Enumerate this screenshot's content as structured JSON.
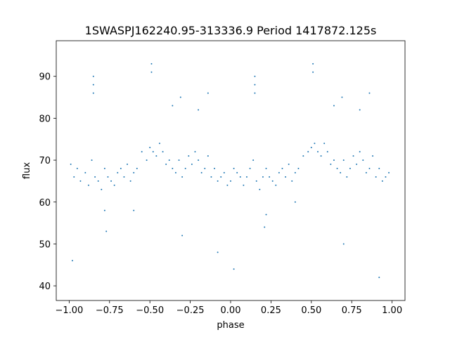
{
  "chart_data": {
    "type": "scatter",
    "title": "1SWASPJ162240.95-313336.9 Period 1417872.125s",
    "xlabel": "phase",
    "ylabel": "flux",
    "xlim": [
      -1.08,
      1.08
    ],
    "ylim": [
      36.5,
      98.5
    ],
    "x_ticks": [
      -1.0,
      -0.75,
      -0.5,
      -0.25,
      0.0,
      0.25,
      0.5,
      0.75,
      1.0
    ],
    "x_tick_labels": [
      "−1.00",
      "−0.75",
      "−0.50",
      "−0.25",
      "0.00",
      "0.25",
      "0.50",
      "0.75",
      "1.00"
    ],
    "y_ticks": [
      40,
      50,
      60,
      70,
      80,
      90
    ],
    "y_tick_labels": [
      "40",
      "50",
      "60",
      "70",
      "80",
      "90"
    ],
    "grid": false,
    "marker_color": "#1f77b4",
    "series": [
      {
        "x": [
          -0.99,
          -0.97,
          -0.95,
          -0.93,
          -0.9,
          -0.88,
          -0.86,
          -0.84,
          -0.82,
          -0.8,
          -0.78,
          -0.76,
          -0.74,
          -0.72,
          -0.7,
          -0.68,
          -0.66,
          -0.64,
          -0.62,
          -0.6,
          -0.58,
          -0.55,
          -0.52,
          -0.5,
          -0.48,
          -0.46,
          -0.44,
          -0.42,
          -0.4,
          -0.38,
          -0.36,
          -0.34,
          -0.32,
          -0.3,
          -0.28,
          -0.26,
          -0.24,
          -0.22,
          -0.2,
          -0.18,
          -0.16,
          -0.14,
          -0.12,
          -0.1,
          -0.08,
          -0.06,
          -0.04,
          -0.02,
          0.0,
          0.02,
          0.04,
          0.06,
          0.08,
          0.1,
          0.12,
          0.14,
          0.16,
          0.18,
          0.2,
          0.22,
          0.24,
          0.26,
          0.28,
          0.3,
          0.32,
          0.34,
          0.36,
          0.38,
          0.4,
          0.42,
          0.45,
          0.48,
          0.5,
          0.52,
          0.54,
          0.56,
          0.58,
          0.6,
          0.62,
          0.64,
          0.66,
          0.68,
          0.7,
          0.72,
          0.74,
          0.76,
          0.78,
          0.8,
          0.82,
          0.84,
          0.86,
          0.88,
          0.9,
          0.92,
          0.94,
          0.96,
          0.98,
          -0.85,
          -0.85,
          -0.85,
          0.15,
          0.15,
          0.15,
          -0.49,
          -0.49,
          0.51,
          0.51,
          -0.36,
          -0.31,
          -0.2,
          -0.14,
          0.64,
          0.69,
          0.8,
          0.86,
          -0.78,
          -0.77,
          0.22,
          0.21,
          -0.98,
          0.02,
          -0.6,
          0.4,
          -0.08,
          0.92,
          -0.3,
          0.7
        ],
        "y": [
          69,
          66,
          68,
          65,
          67,
          64,
          70,
          66,
          65,
          63,
          68,
          66,
          65,
          64,
          67,
          68,
          66,
          69,
          65,
          67,
          68,
          72,
          70,
          73,
          72,
          71,
          74,
          72,
          69,
          70,
          68,
          67,
          70,
          66,
          68,
          71,
          69,
          72,
          70,
          67,
          68,
          71,
          66,
          68,
          65,
          66,
          67,
          64,
          65,
          68,
          67,
          66,
          64,
          66,
          68,
          70,
          65,
          63,
          66,
          68,
          66,
          65,
          64,
          67,
          68,
          66,
          69,
          65,
          67,
          68,
          71,
          72,
          73,
          74,
          72,
          71,
          74,
          72,
          69,
          70,
          68,
          67,
          70,
          66,
          68,
          71,
          69,
          72,
          70,
          67,
          68,
          71,
          66,
          68,
          65,
          66,
          67,
          88,
          90,
          86,
          88,
          90,
          86,
          93,
          91,
          93,
          91,
          83,
          85,
          82,
          86,
          83,
          85,
          82,
          86,
          58,
          53,
          57,
          54,
          46,
          44,
          58,
          60,
          48,
          42,
          52,
          50
        ]
      }
    ]
  }
}
